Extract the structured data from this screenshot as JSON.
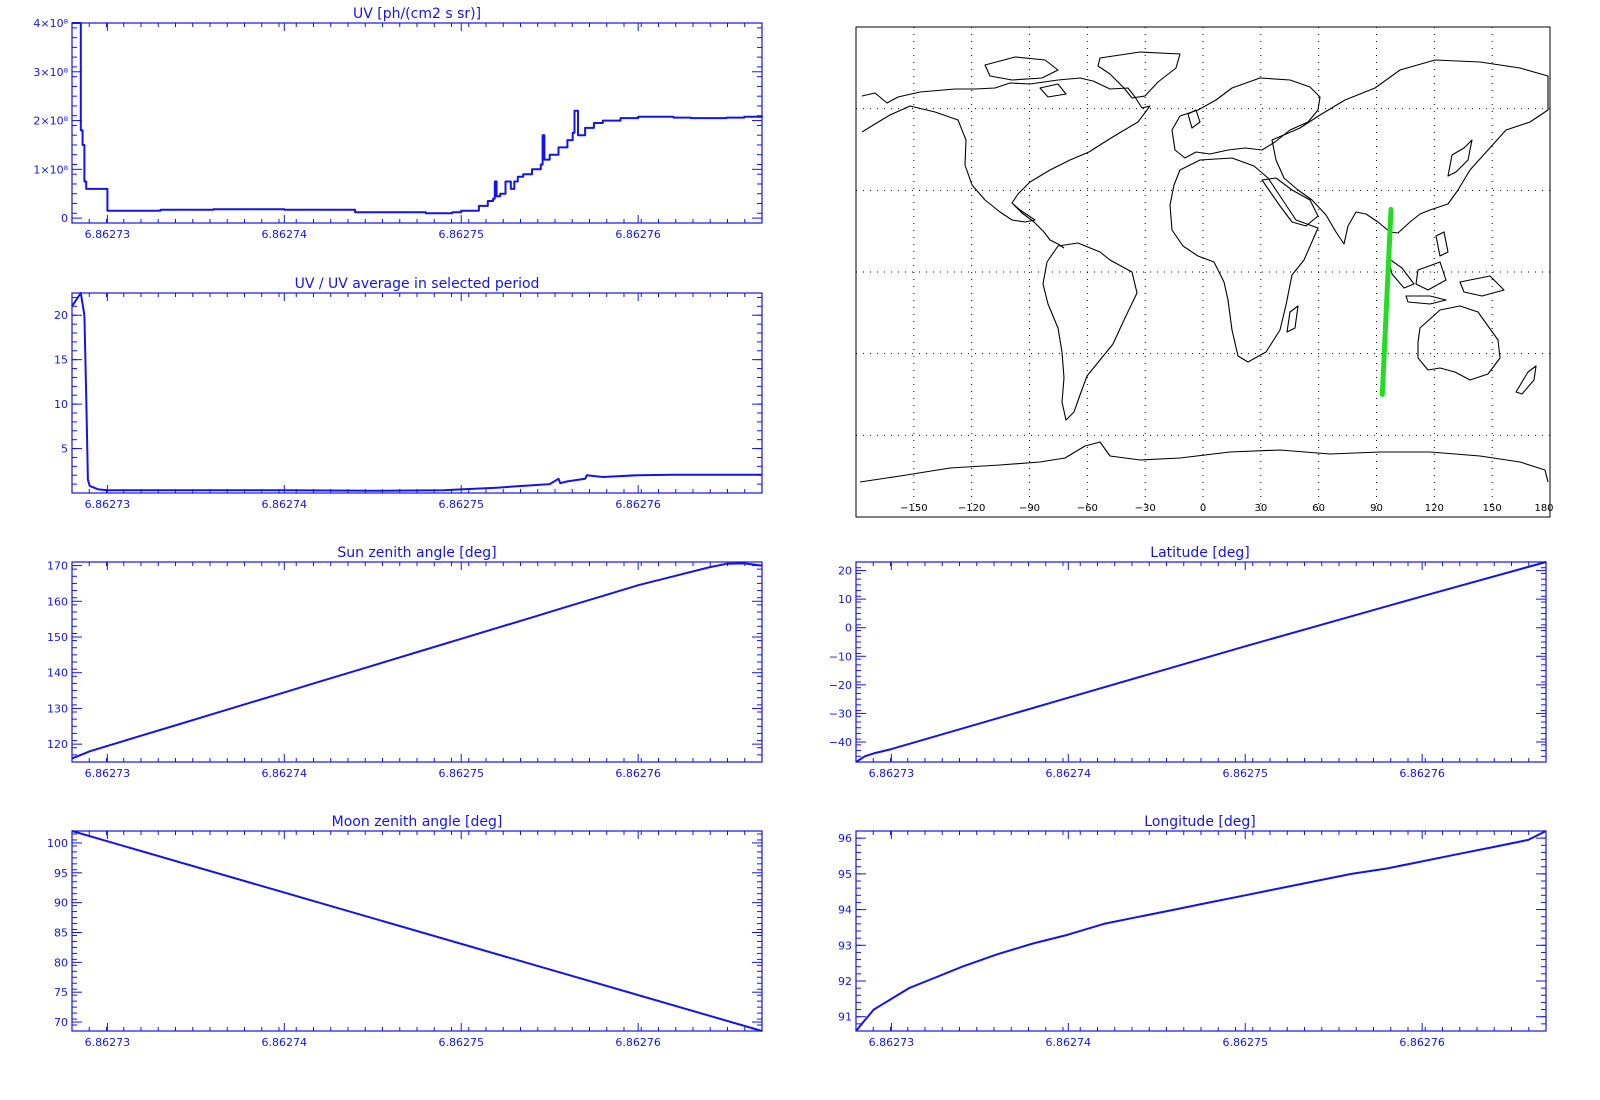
{
  "colors": {
    "axis": "#1414e6",
    "series": "#1414e6",
    "map_lines": "#000000",
    "track": "#22dd22",
    "background": "#ffffff"
  },
  "chart_data": [
    {
      "id": "uv",
      "type": "line",
      "title": "UV [ph/(cm2 s sr)]",
      "x_ticks": [
        "6.86273",
        "6.86274",
        "6.86275",
        "6.86276"
      ],
      "xlim": [
        6.862728,
        6.862767
      ],
      "ylim": [
        -0.1,
        4.0
      ],
      "y_ticks": [
        {
          "value": 0,
          "label": "0"
        },
        {
          "value": 1,
          "label": "1×10⁸"
        },
        {
          "value": 2,
          "label": "2×10⁸"
        },
        {
          "value": 3,
          "label": "3×10⁸"
        },
        {
          "value": 4,
          "label": "4×10⁸"
        }
      ],
      "y_unit_scale": 100000000,
      "step": true,
      "x": [
        6.862728,
        6.8627284,
        6.8627285,
        6.8627286,
        6.8627287,
        6.8627288,
        6.862729,
        6.86273,
        6.862733,
        6.862736,
        6.86274,
        6.862744,
        6.862748,
        6.8627495,
        6.86275,
        6.862751,
        6.8627515,
        6.8627518,
        6.8627519,
        6.862752,
        6.8627522,
        6.8627525,
        6.8627528,
        6.862753,
        6.8627532,
        6.8627535,
        6.862754,
        6.8627545,
        6.8627546,
        6.8627547,
        6.862755,
        6.8627555,
        6.862756,
        6.8627563,
        6.8627564,
        6.8627566,
        6.862757,
        6.8627575,
        6.862758,
        6.862759,
        6.86276,
        6.862761,
        6.862762,
        6.862763,
        6.862764,
        6.862765,
        6.862766,
        6.862767
      ],
      "y": [
        4.0,
        4.0,
        1.8,
        1.5,
        0.75,
        0.6,
        0.6,
        0.15,
        0.17,
        0.18,
        0.17,
        0.12,
        0.1,
        0.12,
        0.15,
        0.25,
        0.35,
        0.4,
        0.75,
        0.45,
        0.5,
        0.75,
        0.6,
        0.75,
        0.85,
        0.9,
        1.0,
        1.1,
        1.7,
        1.2,
        1.3,
        1.45,
        1.6,
        1.75,
        2.2,
        1.7,
        1.85,
        1.95,
        2.0,
        2.05,
        2.08,
        2.08,
        2.06,
        2.05,
        2.05,
        2.06,
        2.08,
        2.1
      ]
    },
    {
      "id": "uv_ratio",
      "type": "line",
      "title": "UV / UV average in selected period",
      "x_ticks": [
        "6.86273",
        "6.86274",
        "6.86275",
        "6.86276"
      ],
      "xlim": [
        6.862728,
        6.862767
      ],
      "ylim": [
        0,
        22.5
      ],
      "y_ticks": [
        {
          "value": 5,
          "label": "5"
        },
        {
          "value": 10,
          "label": "10"
        },
        {
          "value": 15,
          "label": "15"
        },
        {
          "value": 20,
          "label": "20"
        }
      ],
      "x": [
        6.862728,
        6.8627285,
        6.8627287,
        6.8627288,
        6.8627289,
        6.862729,
        6.8627295,
        6.86273,
        6.862735,
        6.86274,
        6.862745,
        6.862749,
        6.86275,
        6.862752,
        6.8627535,
        6.862755,
        6.8627555,
        6.8627556,
        6.862756,
        6.862757,
        6.8627571,
        6.862758,
        6.86276,
        6.862762,
        6.862765,
        6.862767
      ],
      "y": [
        21,
        22.5,
        20,
        11,
        1.5,
        0.8,
        0.4,
        0.3,
        0.3,
        0.3,
        0.25,
        0.3,
        0.4,
        0.6,
        0.8,
        1.0,
        1.6,
        1.1,
        1.3,
        1.6,
        2.0,
        1.8,
        2.0,
        2.05,
        2.05,
        2.05
      ]
    },
    {
      "id": "sun_zenith",
      "type": "line",
      "title": "Sun zenith angle [deg]",
      "x_ticks": [
        "6.86273",
        "6.86274",
        "6.86275",
        "6.86276"
      ],
      "xlim": [
        6.862728,
        6.862767
      ],
      "ylim": [
        115,
        171
      ],
      "y_ticks": [
        {
          "value": 120,
          "label": "120"
        },
        {
          "value": 130,
          "label": "130"
        },
        {
          "value": 140,
          "label": "140"
        },
        {
          "value": 150,
          "label": "150"
        },
        {
          "value": 160,
          "label": "160"
        },
        {
          "value": 170,
          "label": "170"
        }
      ],
      "x": [
        6.862728,
        6.8627285,
        6.862729,
        6.86273,
        6.862732,
        6.862734,
        6.862736,
        6.862738,
        6.86274,
        6.862742,
        6.862744,
        6.862746,
        6.862748,
        6.86275,
        6.862752,
        6.862754,
        6.862756,
        6.862758,
        6.86276,
        6.862762,
        6.862764,
        6.862765,
        6.862766,
        6.862767
      ],
      "y": [
        116,
        117,
        118,
        119.5,
        122.5,
        125.5,
        128.5,
        131.5,
        134.5,
        137.5,
        140.5,
        143.5,
        146.5,
        149.5,
        152.5,
        155.5,
        158.5,
        161.5,
        164.5,
        167,
        169.5,
        170.5,
        170.6,
        170
      ]
    },
    {
      "id": "moon_zenith",
      "type": "line",
      "title": "Moon zenith angle [deg]",
      "x_ticks": [
        "6.86273",
        "6.86274",
        "6.86275",
        "6.86276"
      ],
      "xlim": [
        6.862728,
        6.862767
      ],
      "ylim": [
        68.5,
        102
      ],
      "y_ticks": [
        {
          "value": 70,
          "label": "70"
        },
        {
          "value": 75,
          "label": "75"
        },
        {
          "value": 80,
          "label": "80"
        },
        {
          "value": 85,
          "label": "85"
        },
        {
          "value": 90,
          "label": "90"
        },
        {
          "value": 95,
          "label": "95"
        },
        {
          "value": 100,
          "label": "100"
        }
      ],
      "x": [
        6.862728,
        6.862767
      ],
      "y": [
        102,
        68.5
      ]
    },
    {
      "id": "latitude",
      "type": "line",
      "title": "Latitude [deg]",
      "x_ticks": [
        "6.86273",
        "6.86274",
        "6.86275",
        "6.86276"
      ],
      "xlim": [
        6.862728,
        6.862767
      ],
      "ylim": [
        -47,
        23
      ],
      "y_ticks": [
        {
          "value": -40,
          "label": "−40"
        },
        {
          "value": -30,
          "label": "−30"
        },
        {
          "value": -20,
          "label": "−20"
        },
        {
          "value": -10,
          "label": "−10"
        },
        {
          "value": 0,
          "label": "0"
        },
        {
          "value": 10,
          "label": "10"
        },
        {
          "value": 20,
          "label": "20"
        }
      ],
      "x": [
        6.862728,
        6.8627285,
        6.862729,
        6.86273,
        6.86274,
        6.86275,
        6.86276,
        6.862767
      ],
      "y": [
        -47,
        -45,
        -44,
        -42.5,
        -24.5,
        -6.5,
        11,
        23
      ]
    },
    {
      "id": "longitude",
      "type": "line",
      "title": "Longitude [deg]",
      "x_ticks": [
        "6.86273",
        "6.86274",
        "6.86275",
        "6.86276"
      ],
      "xlim": [
        6.862728,
        6.862767
      ],
      "ylim": [
        90.6,
        96.2
      ],
      "y_ticks": [
        {
          "value": 91,
          "label": "91"
        },
        {
          "value": 92,
          "label": "92"
        },
        {
          "value": 93,
          "label": "93"
        },
        {
          "value": 94,
          "label": "94"
        },
        {
          "value": 95,
          "label": "95"
        },
        {
          "value": 96,
          "label": "96"
        }
      ],
      "x": [
        6.862728,
        6.8627285,
        6.862729,
        6.86273,
        6.862731,
        6.862732,
        6.862734,
        6.862736,
        6.862738,
        6.86274,
        6.862742,
        6.862744,
        6.862746,
        6.862748,
        6.86275,
        6.862752,
        6.862754,
        6.862756,
        6.862758,
        6.86276,
        6.862762,
        6.862764,
        6.862766,
        6.862767
      ],
      "y": [
        90.6,
        90.9,
        91.2,
        91.5,
        91.8,
        92.0,
        92.4,
        92.75,
        93.05,
        93.3,
        93.6,
        93.8,
        94.0,
        94.2,
        94.4,
        94.6,
        94.8,
        95.0,
        95.15,
        95.35,
        95.55,
        95.75,
        95.95,
        96.2
      ]
    },
    {
      "id": "map",
      "type": "map",
      "projection": "cylindrical",
      "lon_range": [
        -180,
        180
      ],
      "lat_range": [
        -90,
        90
      ],
      "lon_ticks": [
        "−150",
        "−120",
        "−90",
        "−60",
        "−30",
        "0",
        "30",
        "60",
        "90",
        "120",
        "150",
        "180"
      ],
      "grid": "dotted",
      "track": {
        "lon": [
          93,
          97.5
        ],
        "lat": [
          -45,
          23
        ]
      }
    }
  ]
}
